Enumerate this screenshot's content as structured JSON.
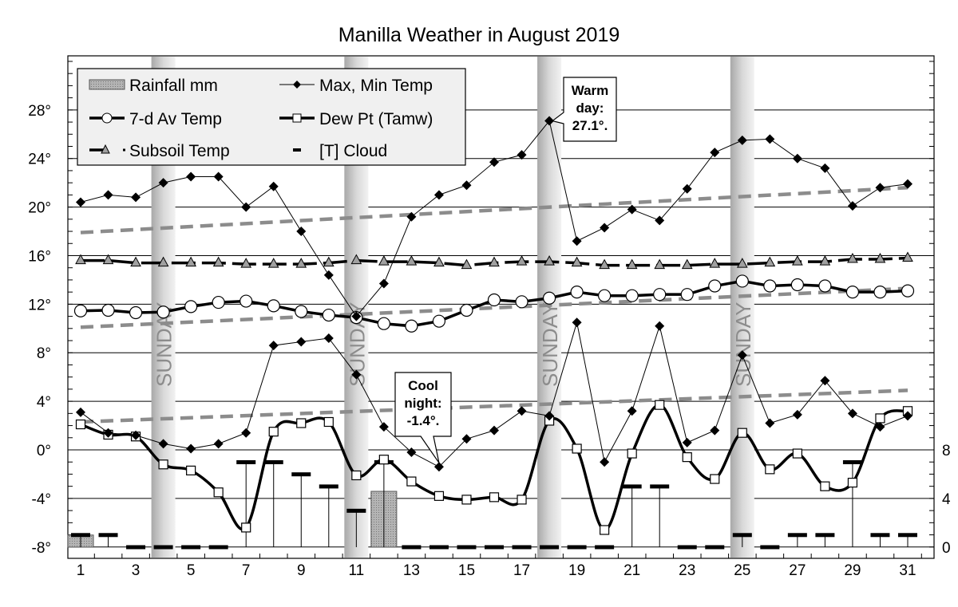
{
  "chart_data": {
    "type": "line",
    "title": "Manilla Weather in August 2019",
    "x": [
      1,
      2,
      3,
      4,
      5,
      6,
      7,
      8,
      9,
      10,
      11,
      12,
      13,
      14,
      15,
      16,
      17,
      18,
      19,
      20,
      21,
      22,
      23,
      24,
      25,
      26,
      27,
      28,
      29,
      30,
      31
    ],
    "x_tick_labels": [
      "1",
      "3",
      "5",
      "7",
      "9",
      "11",
      "13",
      "15",
      "17",
      "19",
      "21",
      "23",
      "25",
      "27",
      "29",
      "31"
    ],
    "y_left": {
      "range": [
        -8,
        32
      ],
      "tick_labels": [
        "-8°",
        "-4°",
        "0°",
        "4°",
        "8°",
        "12°",
        "16°",
        "20°",
        "24°",
        "28°"
      ],
      "ticks": [
        -8,
        -4,
        0,
        4,
        8,
        12,
        16,
        20,
        24,
        28
      ]
    },
    "y_right": {
      "range": [
        0,
        40
      ],
      "tick_labels": [
        "0",
        "4",
        "8"
      ],
      "ticks": [
        0,
        4,
        8
      ]
    },
    "grid": true,
    "legend_placement": "top-left",
    "series": [
      {
        "name": "Max, Min Temp",
        "key": "max",
        "values": [
          20.4,
          21.0,
          20.8,
          22.0,
          22.5,
          22.5,
          20.0,
          21.7,
          18.0,
          14.4,
          11.0,
          13.7,
          19.2,
          21.0,
          21.8,
          23.7,
          24.3,
          27.1,
          17.2,
          18.3,
          19.8,
          18.9,
          21.5,
          24.5,
          25.5,
          25.6,
          24.0,
          23.2,
          20.1,
          21.6,
          21.9
        ]
      },
      {
        "name": "",
        "key": "min",
        "values": [
          3.1,
          1.4,
          1.2,
          0.5,
          0.1,
          0.5,
          1.4,
          8.6,
          8.9,
          9.2,
          6.2,
          1.9,
          -0.2,
          -1.4,
          0.9,
          1.6,
          3.2,
          2.8,
          10.5,
          -1.0,
          3.2,
          10.2,
          0.6,
          1.6,
          7.8,
          2.2,
          2.9,
          5.7,
          3.0,
          1.9,
          2.8
        ]
      },
      {
        "name": "7-d Av Temp",
        "key": "avg7",
        "values": [
          11.45,
          11.5,
          11.3,
          11.35,
          11.8,
          12.15,
          12.25,
          11.87,
          11.4,
          11.1,
          10.9,
          10.4,
          10.2,
          10.6,
          11.5,
          12.35,
          12.2,
          12.5,
          13.0,
          12.7,
          12.7,
          12.8,
          12.8,
          13.5,
          13.9,
          13.5,
          13.6,
          13.5,
          13.0,
          13.0,
          13.1
        ]
      },
      {
        "name": "Dew Pt (Tamw)",
        "key": "dew",
        "values": [
          2.1,
          1.25,
          1.1,
          -1.2,
          -1.7,
          -3.5,
          -6.4,
          1.5,
          2.2,
          2.3,
          -2.1,
          -0.8,
          -2.6,
          -3.8,
          -4.1,
          -3.9,
          -4.1,
          2.4,
          0.1,
          -6.6,
          -0.3,
          3.7,
          -0.6,
          -2.4,
          1.4,
          -1.6,
          -0.3,
          -3.0,
          -2.7,
          2.6,
          3.2
        ]
      },
      {
        "name": "Subsoil Temp",
        "key": "subsoil",
        "values": [
          15.6,
          15.6,
          15.4,
          15.4,
          15.4,
          15.4,
          15.3,
          15.3,
          15.3,
          15.4,
          15.6,
          15.5,
          15.5,
          15.4,
          15.2,
          15.4,
          15.5,
          15.5,
          15.4,
          15.2,
          15.2,
          15.2,
          15.2,
          15.3,
          15.3,
          15.4,
          15.5,
          15.5,
          15.7,
          15.7,
          15.8
        ]
      },
      {
        "name": "[T] Cloud",
        "key": "cloud",
        "axis": "right",
        "values": [
          1,
          1,
          0,
          0,
          0,
          0,
          7,
          7,
          6,
          5,
          3,
          7,
          0,
          0,
          0,
          0,
          0,
          0,
          0,
          0,
          5,
          5,
          0,
          0,
          1,
          0,
          1,
          1,
          7,
          1,
          1
        ]
      },
      {
        "name": "Rainfall mm",
        "key": "rain",
        "axis": "right",
        "values": [
          1.0,
          0,
          0,
          0,
          0,
          0,
          0,
          0,
          0,
          0,
          0,
          4.6,
          0,
          0,
          0,
          0,
          0,
          0,
          0,
          0,
          0,
          0,
          0,
          0,
          0,
          0,
          0,
          0,
          0,
          0,
          0
        ]
      }
    ],
    "trend_lines": [
      {
        "of": "max",
        "from": [
          1,
          17.9
        ],
        "to": [
          31,
          21.6
        ]
      },
      {
        "of": "avg7",
        "from": [
          1,
          10.1
        ],
        "to": [
          31,
          13.3
        ]
      },
      {
        "of": "min",
        "from": [
          1,
          2.3
        ],
        "to": [
          31,
          4.9
        ]
      }
    ],
    "sundays": [
      4,
      11,
      18,
      25
    ],
    "sunday_label": "SUNDAY",
    "annotations": [
      {
        "lines": [
          "Warm",
          "day:",
          "27.1°."
        ],
        "day": 18,
        "value": 27.1
      },
      {
        "lines": [
          "Cool",
          "night:",
          "-1.4°."
        ],
        "day": 14,
        "value": -1.4
      }
    ],
    "legend": [
      "Rainfall mm",
      "Max, Min Temp",
      "7-d Av Temp",
      "Dew Pt (Tamw)",
      "Subsoil Temp",
      "[T] Cloud"
    ],
    "colors": {
      "trend": "#8c8c8c",
      "sunday_band": "#c8c8c8",
      "rain_fill": "#b4b4b4",
      "subsoil_marker": "#a0a0a0",
      "legend_bg": "#f0f0f0"
    }
  }
}
